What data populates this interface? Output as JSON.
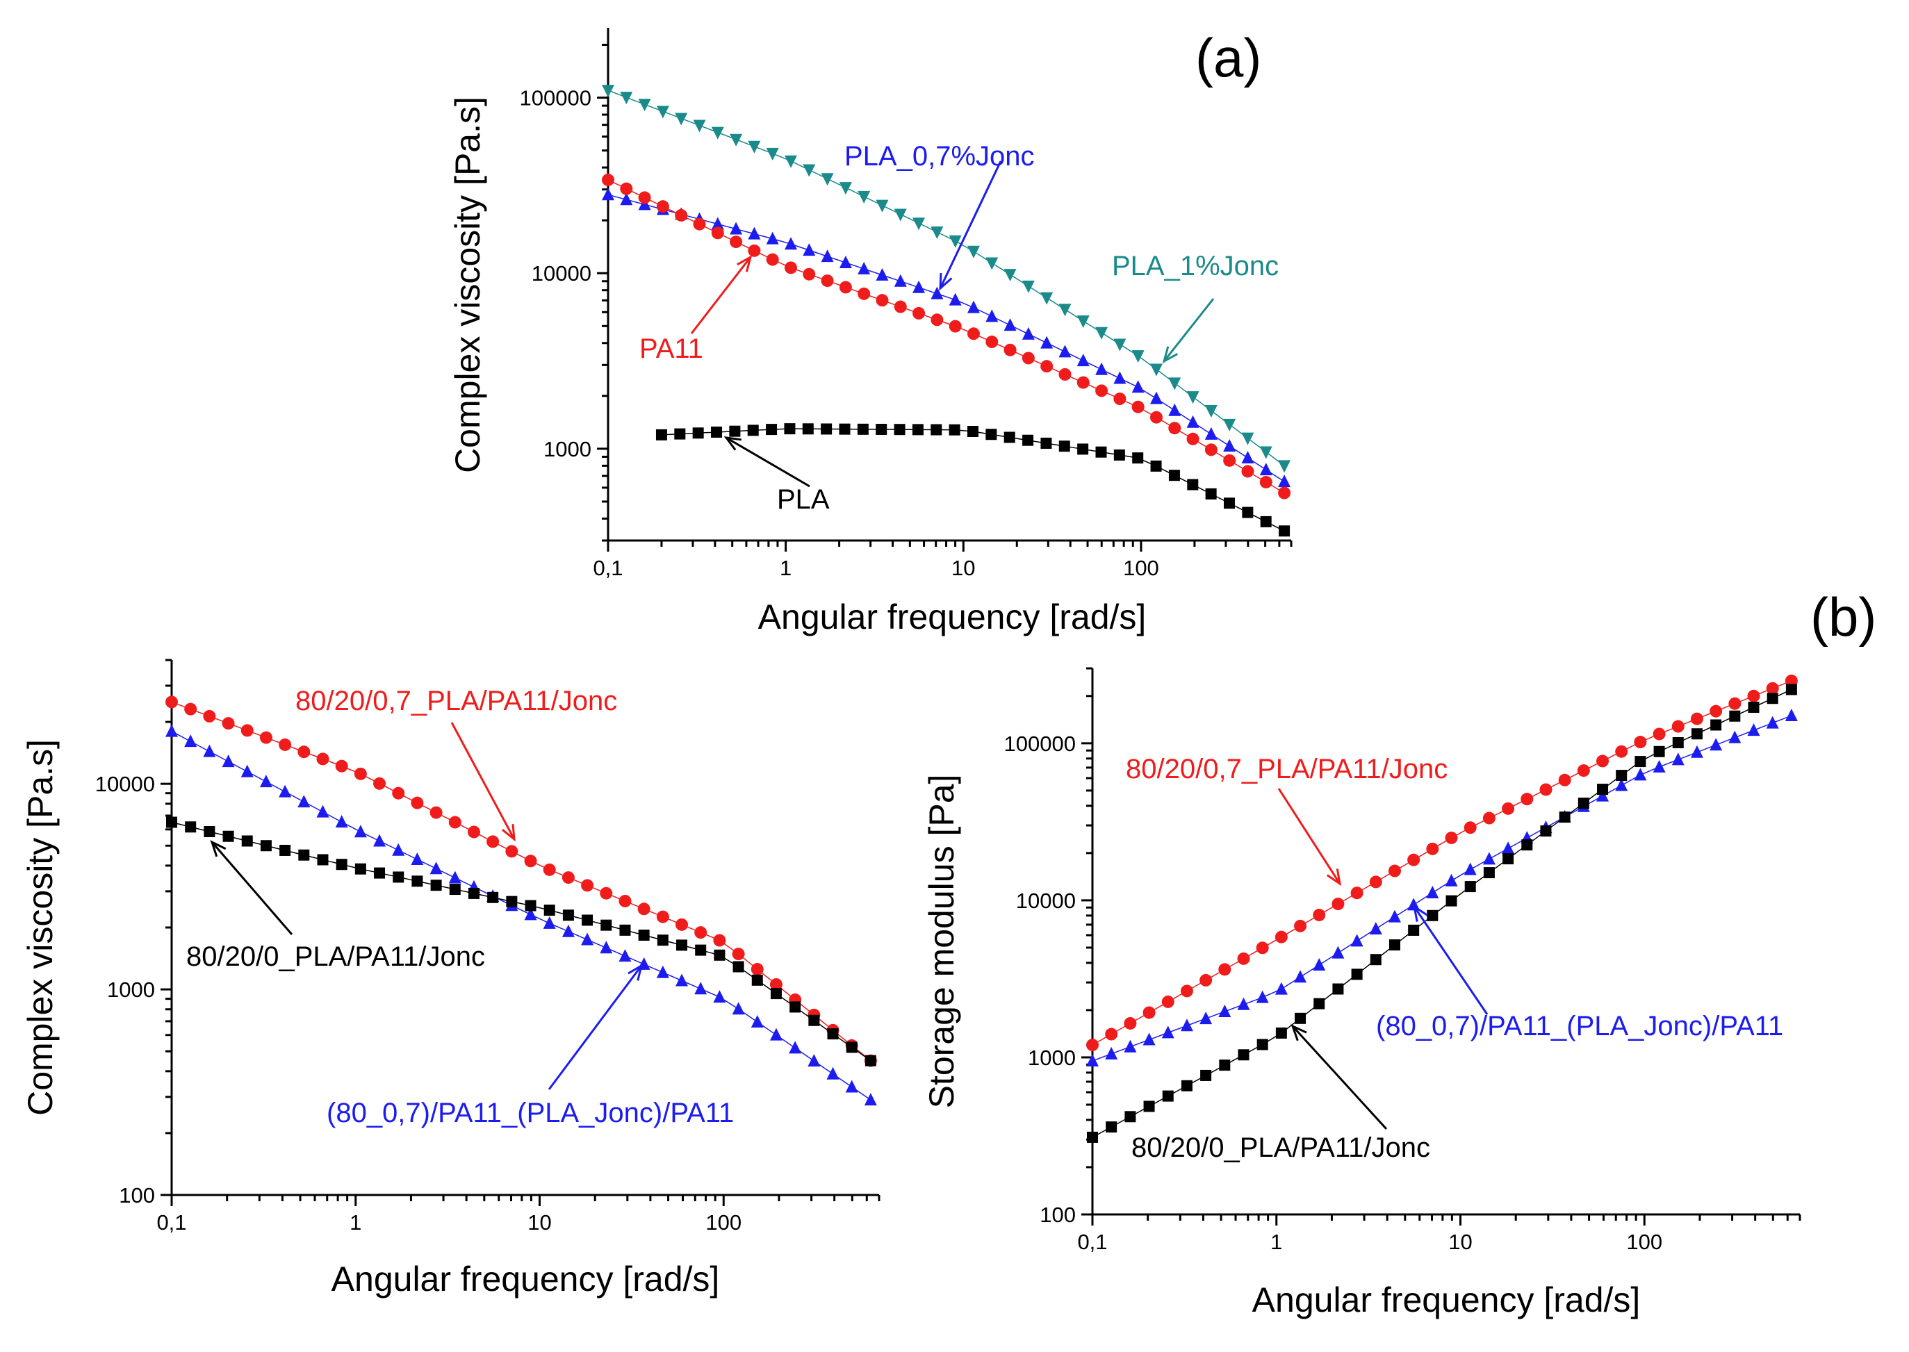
{
  "panel_labels": {
    "a": "(a)",
    "b": "(b)"
  },
  "chart_data": [
    {
      "id": "a",
      "type": "scatter",
      "xscale": "log",
      "yscale": "log",
      "xlim": [
        0.1,
        700
      ],
      "ylim": [
        300,
        250000
      ],
      "xlabel": "Angular frequency [rad/s]",
      "ylabel": "Complex viscosity [Pa.s]",
      "xticks": [
        {
          "v": 0.1,
          "label": "0,1"
        },
        {
          "v": 1,
          "label": "1"
        },
        {
          "v": 10,
          "label": "10"
        },
        {
          "v": 100,
          "label": "100"
        }
      ],
      "yticks": [
        {
          "v": 1000,
          "label": "1000"
        },
        {
          "v": 10000,
          "label": "10000"
        },
        {
          "v": 100000,
          "label": "100000"
        }
      ],
      "series": [
        {
          "name": "PLA_1%Jonc",
          "marker": "triangle-down",
          "color": "#1a8a8a",
          "fn": "pow",
          "x0": 0.1,
          "x1": 640,
          "n": 38,
          "pts": [
            [
              0.1,
              110000
            ],
            [
              1,
              45000
            ],
            [
              10,
              14500
            ],
            [
              100,
              3300
            ],
            [
              640,
              800
            ]
          ]
        },
        {
          "name": "PLA_0,7%Jonc",
          "marker": "triangle-up",
          "color": "#1c1cf0",
          "fn": "pow",
          "x0": 0.1,
          "x1": 640,
          "n": 38,
          "pts": [
            [
              0.1,
              28000
            ],
            [
              1,
              15000
            ],
            [
              10,
              6800
            ],
            [
              100,
              2200
            ],
            [
              640,
              650
            ]
          ]
        },
        {
          "name": "PA11",
          "marker": "circle",
          "color": "#f01c1c",
          "fn": "pow",
          "x0": 0.1,
          "x1": 640,
          "n": 38,
          "pts": [
            [
              0.1,
              34000
            ],
            [
              1,
              11000
            ],
            [
              10,
              4800
            ],
            [
              100,
              1700
            ],
            [
              640,
              560
            ]
          ]
        },
        {
          "name": "PLA",
          "marker": "square",
          "color": "#000000",
          "fn": "pow",
          "x0": 0.2,
          "x1": 640,
          "n": 35,
          "pts": [
            [
              0.2,
              1200
            ],
            [
              1,
              1300
            ],
            [
              10,
              1280
            ],
            [
              100,
              880
            ],
            [
              640,
              340
            ]
          ]
        }
      ],
      "annotations": [
        {
          "text": "PLA_0,7%Jonc",
          "color": "#1c1cf0"
        },
        {
          "text": "PLA_1%Jonc",
          "color": "#1a8a8a"
        },
        {
          "text": "PA11",
          "color": "#f01c1c"
        },
        {
          "text": "PLA",
          "color": "#000000"
        }
      ]
    },
    {
      "id": "b1",
      "type": "scatter",
      "xscale": "log",
      "yscale": "log",
      "xlim": [
        0.1,
        700
      ],
      "ylim": [
        100,
        40000
      ],
      "xlabel": "Angular frequency [rad/s]",
      "ylabel": "Complex viscosity [Pa.s]",
      "xticks": [
        {
          "v": 0.1,
          "label": "0,1"
        },
        {
          "v": 1,
          "label": "1"
        },
        {
          "v": 10,
          "label": "10"
        },
        {
          "v": 100,
          "label": "100"
        }
      ],
      "yticks": [
        {
          "v": 100,
          "label": "100"
        },
        {
          "v": 1000,
          "label": "1000"
        },
        {
          "v": 10000,
          "label": "10000"
        }
      ],
      "series": [
        {
          "name": "80/20/0,7_PLA/PA11/Jonc",
          "marker": "circle",
          "color": "#f01c1c",
          "fn": "pow",
          "x0": 0.1,
          "x1": 630,
          "n": 38,
          "pts": [
            [
              0.1,
              25000
            ],
            [
              1,
              11500
            ],
            [
              10,
              4000
            ],
            [
              100,
              1700
            ],
            [
              630,
              450
            ]
          ]
        },
        {
          "name": "(80_0,7)/PA11_(PLA_Jonc)/PA11",
          "marker": "triangle-up",
          "color": "#1c1cf0",
          "fn": "pow",
          "x0": 0.1,
          "x1": 630,
          "n": 38,
          "pts": [
            [
              0.1,
              18000
            ],
            [
              1,
              6000
            ],
            [
              10,
              2200
            ],
            [
              100,
              900
            ],
            [
              630,
              290
            ]
          ]
        },
        {
          "name": "80/20/0_PLA/PA11/Jonc",
          "marker": "square",
          "color": "#000000",
          "fn": "pow",
          "x0": 0.1,
          "x1": 630,
          "n": 38,
          "pts": [
            [
              0.1,
              6500
            ],
            [
              1,
              3900
            ],
            [
              10,
              2500
            ],
            [
              100,
              1450
            ],
            [
              630,
              450
            ]
          ]
        }
      ],
      "annotations": [
        {
          "text": "80/20/0,7_PLA/PA11/Jonc",
          "color": "#f01c1c"
        },
        {
          "text": "80/20/0_PLA/PA11/Jonc",
          "color": "#000000"
        },
        {
          "text": "(80_0,7)/PA11_(PLA_Jonc)/PA11",
          "color": "#1c1cf0"
        }
      ]
    },
    {
      "id": "b2",
      "type": "scatter",
      "xscale": "log",
      "yscale": "log",
      "xlim": [
        0.1,
        700
      ],
      "ylim": [
        100,
        300000
      ],
      "xlabel": "Angular frequency [rad/s]",
      "ylabel": "Storage modulus [Pa]",
      "xticks": [
        {
          "v": 0.1,
          "label": "0,1"
        },
        {
          "v": 1,
          "label": "1"
        },
        {
          "v": 10,
          "label": "10"
        },
        {
          "v": 100,
          "label": "100"
        }
      ],
      "yticks": [
        {
          "v": 100,
          "label": "100"
        },
        {
          "v": 1000,
          "label": "1000"
        },
        {
          "v": 10000,
          "label": "10000"
        },
        {
          "v": 100000,
          "label": "100000"
        }
      ],
      "series": [
        {
          "name": "80/20/0,7_PLA/PA11/Jonc",
          "marker": "circle",
          "color": "#f01c1c",
          "fn": "pow",
          "x0": 0.1,
          "x1": 630,
          "n": 38,
          "pts": [
            [
              0.1,
              1200
            ],
            [
              1,
              5600
            ],
            [
              10,
              27000
            ],
            [
              100,
              105000
            ],
            [
              630,
              250000
            ]
          ]
        },
        {
          "name": "(80_0,7)/PA11_(PLA_Jonc)/PA11",
          "marker": "triangle-up",
          "color": "#1c1cf0",
          "fn": "pow",
          "x0": 0.1,
          "x1": 630,
          "n": 38,
          "pts": [
            [
              0.1,
              950
            ],
            [
              1,
              2600
            ],
            [
              10,
              14500
            ],
            [
              100,
              65000
            ],
            [
              630,
              150000
            ]
          ]
        },
        {
          "name": "80/20/0_PLA/PA11/Jonc",
          "marker": "square",
          "color": "#000000",
          "fn": "pow",
          "x0": 0.1,
          "x1": 630,
          "n": 38,
          "pts": [
            [
              0.1,
              310
            ],
            [
              1,
              1350
            ],
            [
              10,
              11000
            ],
            [
              100,
              80000
            ],
            [
              630,
              220000
            ]
          ]
        }
      ],
      "annotations": [
        {
          "text": "80/20/0,7_PLA/PA11/Jonc",
          "color": "#f01c1c"
        },
        {
          "text": "(80_0,7)/PA11_(PLA_Jonc)/PA11",
          "color": "#1c1cf0"
        },
        {
          "text": "80/20/0_PLA/PA11/Jonc",
          "color": "#000000"
        }
      ]
    }
  ]
}
